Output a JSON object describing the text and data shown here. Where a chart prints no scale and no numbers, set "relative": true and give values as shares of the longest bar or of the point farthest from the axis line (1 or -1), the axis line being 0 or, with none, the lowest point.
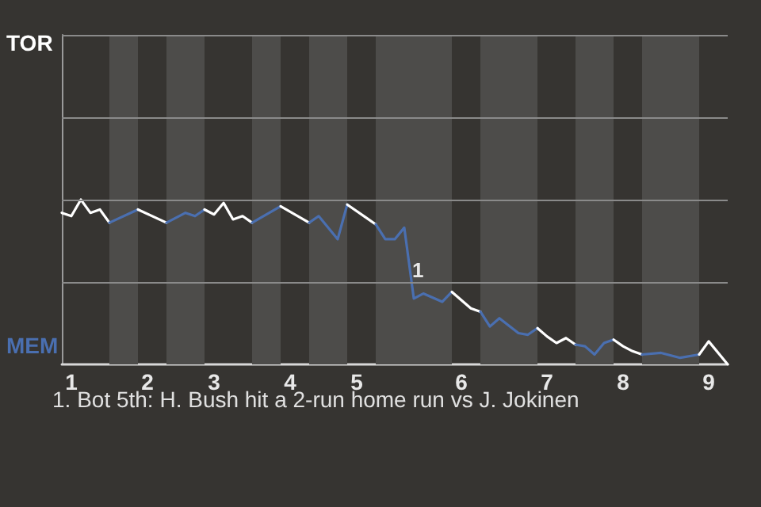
{
  "chart_data": {
    "type": "line",
    "relative": true,
    "categories": [
      null,
      "1",
      null,
      null,
      null,
      null,
      null,
      null,
      null,
      "2",
      null,
      null,
      null,
      null,
      null,
      null,
      "3",
      null,
      null,
      null,
      null,
      null,
      null,
      null,
      "4",
      null,
      null,
      null,
      null,
      null,
      null,
      "5",
      null,
      null,
      null,
      null,
      null,
      null,
      null,
      null,
      null,
      null,
      "6",
      null,
      null,
      null,
      null,
      null,
      null,
      null,
      null,
      "7",
      null,
      null,
      null,
      null,
      null,
      null,
      null,
      "8",
      null,
      null,
      null,
      null,
      null,
      null,
      null,
      null,
      "9",
      null,
      null
    ],
    "ref_lines": [
      {
        "axis": "y",
        "value": 0.5,
        "color": "#8a8a8a",
        "line_style": "solid"
      },
      {
        "axis": "y",
        "value": 1,
        "color": "#8a8a8a",
        "line_style": "solid"
      },
      {
        "axis": "y",
        "value": 1.5,
        "color": "#8a8a8a",
        "line_style": "solid"
      },
      {
        "axis": "y",
        "value": 2,
        "color": "#8a8a8a",
        "line_style": "solid"
      }
    ],
    "marker": "none",
    "line_style": "solid",
    "annotations": [
      "TOR",
      "MEM",
      "1",
      "1. Bot 5th: H. Bush hit a 2-run home run vs J. Jokinen"
    ],
    "series": [
      {
        "color": "#ffffff",
        "values": [
          0.92,
          0.9,
          1,
          0.92,
          0.94,
          0.86,
          null,
          null,
          null,
          null,
          null,
          null,
          null,
          null,
          null,
          null,
          null,
          null,
          null,
          null,
          null,
          null,
          null,
          null,
          null,
          null,
          null,
          null,
          null,
          null,
          null,
          null,
          null,
          null,
          null,
          null,
          null,
          null,
          null,
          null,
          null,
          null,
          null,
          null,
          null,
          null,
          null,
          null,
          null,
          null,
          null,
          null,
          null,
          null,
          null,
          null,
          null,
          null,
          null,
          null,
          null,
          null,
          null,
          null,
          null,
          null,
          null,
          null,
          null,
          null,
          null
        ]
      },
      {
        "color": "#4a6fb0",
        "values": [
          null,
          null,
          null,
          null,
          null,
          0.86,
          null,
          null,
          0.94,
          null,
          null,
          null,
          null,
          null,
          null,
          null,
          null,
          null,
          null,
          null,
          null,
          null,
          null,
          null,
          null,
          null,
          null,
          null,
          null,
          null,
          null,
          null,
          null,
          null,
          null,
          null,
          null,
          null,
          null,
          null,
          null,
          null,
          null,
          null,
          null,
          null,
          null,
          null,
          null,
          null,
          null,
          null,
          null,
          null,
          null,
          null,
          null,
          null,
          null,
          null,
          null,
          null,
          null,
          null,
          null,
          null,
          null,
          null,
          null,
          null,
          null
        ]
      },
      {
        "color": "#ffffff",
        "values": [
          null,
          null,
          null,
          null,
          null,
          null,
          null,
          null,
          0.94,
          null,
          null,
          0.86,
          null,
          null,
          null,
          null,
          null,
          null,
          null,
          null,
          null,
          null,
          null,
          null,
          null,
          null,
          null,
          null,
          null,
          null,
          null,
          null,
          null,
          null,
          null,
          null,
          null,
          null,
          null,
          null,
          null,
          null,
          null,
          null,
          null,
          null,
          null,
          null,
          null,
          null,
          null,
          null,
          null,
          null,
          null,
          null,
          null,
          null,
          null,
          null,
          null,
          null,
          null,
          null,
          null,
          null,
          null,
          null,
          null,
          null,
          null
        ]
      },
      {
        "color": "#4a6fb0",
        "values": [
          null,
          null,
          null,
          null,
          null,
          null,
          null,
          null,
          null,
          null,
          null,
          0.86,
          null,
          0.92,
          0.9,
          0.94,
          null,
          null,
          null,
          null,
          null,
          null,
          null,
          null,
          null,
          null,
          null,
          null,
          null,
          null,
          null,
          null,
          null,
          null,
          null,
          null,
          null,
          null,
          null,
          null,
          null,
          null,
          null,
          null,
          null,
          null,
          null,
          null,
          null,
          null,
          null,
          null,
          null,
          null,
          null,
          null,
          null,
          null,
          null,
          null,
          null,
          null,
          null,
          null,
          null,
          null,
          null,
          null,
          null,
          null,
          null
        ]
      },
      {
        "color": "#ffffff",
        "values": [
          null,
          null,
          null,
          null,
          null,
          null,
          null,
          null,
          null,
          null,
          null,
          null,
          null,
          null,
          null,
          0.94,
          0.91,
          0.98,
          0.88,
          0.9,
          0.86,
          null,
          null,
          null,
          null,
          null,
          null,
          null,
          null,
          null,
          null,
          null,
          null,
          null,
          null,
          null,
          null,
          null,
          null,
          null,
          null,
          null,
          null,
          null,
          null,
          null,
          null,
          null,
          null,
          null,
          null,
          null,
          null,
          null,
          null,
          null,
          null,
          null,
          null,
          null,
          null,
          null,
          null,
          null,
          null,
          null,
          null,
          null,
          null,
          null,
          null
        ]
      },
      {
        "color": "#4a6fb0",
        "values": [
          null,
          null,
          null,
          null,
          null,
          null,
          null,
          null,
          null,
          null,
          null,
          null,
          null,
          null,
          null,
          null,
          null,
          null,
          null,
          null,
          0.86,
          null,
          null,
          0.96,
          null,
          null,
          null,
          null,
          null,
          null,
          null,
          null,
          null,
          null,
          null,
          null,
          null,
          null,
          null,
          null,
          null,
          null,
          null,
          null,
          null,
          null,
          null,
          null,
          null,
          null,
          null,
          null,
          null,
          null,
          null,
          null,
          null,
          null,
          null,
          null,
          null,
          null,
          null,
          null,
          null,
          null,
          null,
          null,
          null,
          null,
          null
        ]
      },
      {
        "color": "#ffffff",
        "values": [
          null,
          null,
          null,
          null,
          null,
          null,
          null,
          null,
          null,
          null,
          null,
          null,
          null,
          null,
          null,
          null,
          null,
          null,
          null,
          null,
          null,
          null,
          null,
          0.96,
          null,
          null,
          0.86,
          null,
          null,
          null,
          null,
          null,
          null,
          null,
          null,
          null,
          null,
          null,
          null,
          null,
          null,
          null,
          null,
          null,
          null,
          null,
          null,
          null,
          null,
          null,
          null,
          null,
          null,
          null,
          null,
          null,
          null,
          null,
          null,
          null,
          null,
          null,
          null,
          null,
          null,
          null,
          null,
          null,
          null,
          null,
          null
        ]
      },
      {
        "color": "#4a6fb0",
        "values": [
          null,
          null,
          null,
          null,
          null,
          null,
          null,
          null,
          null,
          null,
          null,
          null,
          null,
          null,
          null,
          null,
          null,
          null,
          null,
          null,
          null,
          null,
          null,
          null,
          null,
          null,
          0.86,
          0.9,
          null,
          0.76,
          0.97,
          null,
          null,
          null,
          null,
          null,
          null,
          null,
          null,
          null,
          null,
          null,
          null,
          null,
          null,
          null,
          null,
          null,
          null,
          null,
          null,
          null,
          null,
          null,
          null,
          null,
          null,
          null,
          null,
          null,
          null,
          null,
          null,
          null,
          null,
          null,
          null,
          null,
          null,
          null,
          null
        ]
      },
      {
        "color": "#ffffff",
        "values": [
          null,
          null,
          null,
          null,
          null,
          null,
          null,
          null,
          null,
          null,
          null,
          null,
          null,
          null,
          null,
          null,
          null,
          null,
          null,
          null,
          null,
          null,
          null,
          null,
          null,
          null,
          null,
          null,
          null,
          null,
          0.97,
          null,
          0.89,
          0.85,
          null,
          null,
          null,
          null,
          null,
          null,
          null,
          null,
          null,
          null,
          null,
          null,
          null,
          null,
          null,
          null,
          null,
          null,
          null,
          null,
          null,
          null,
          null,
          null,
          null,
          null,
          null,
          null,
          null,
          null,
          null,
          null,
          null,
          null,
          null,
          null,
          null
        ]
      },
      {
        "color": "#4a6fb0",
        "values": [
          null,
          null,
          null,
          null,
          null,
          null,
          null,
          null,
          null,
          null,
          null,
          null,
          null,
          null,
          null,
          null,
          null,
          null,
          null,
          null,
          null,
          null,
          null,
          null,
          null,
          null,
          null,
          null,
          null,
          null,
          null,
          null,
          null,
          0.85,
          0.76,
          0.76,
          0.83,
          0.4,
          0.43,
          null,
          0.38,
          0.44,
          null,
          null,
          null,
          null,
          null,
          null,
          null,
          null,
          null,
          null,
          null,
          null,
          null,
          null,
          null,
          null,
          null,
          null,
          null,
          null,
          null,
          null,
          null,
          null,
          null,
          null,
          null,
          null,
          null
        ]
      },
      {
        "color": "#ffffff",
        "values": [
          null,
          null,
          null,
          null,
          null,
          null,
          null,
          null,
          null,
          null,
          null,
          null,
          null,
          null,
          null,
          null,
          null,
          null,
          null,
          null,
          null,
          null,
          null,
          null,
          null,
          null,
          null,
          null,
          null,
          null,
          null,
          null,
          null,
          null,
          null,
          null,
          null,
          null,
          null,
          null,
          null,
          0.44,
          null,
          0.34,
          0.32,
          null,
          null,
          null,
          null,
          null,
          null,
          null,
          null,
          null,
          null,
          null,
          null,
          null,
          null,
          null,
          null,
          null,
          null,
          null,
          null,
          null,
          null,
          null,
          null,
          null,
          null
        ]
      },
      {
        "color": "#4a6fb0",
        "values": [
          null,
          null,
          null,
          null,
          null,
          null,
          null,
          null,
          null,
          null,
          null,
          null,
          null,
          null,
          null,
          null,
          null,
          null,
          null,
          null,
          null,
          null,
          null,
          null,
          null,
          null,
          null,
          null,
          null,
          null,
          null,
          null,
          null,
          null,
          null,
          null,
          null,
          null,
          null,
          null,
          null,
          null,
          null,
          null,
          0.32,
          0.23,
          0.28,
          null,
          0.19,
          0.18,
          0.22,
          null,
          null,
          null,
          null,
          null,
          null,
          null,
          null,
          null,
          null,
          null,
          null,
          null,
          null,
          null,
          null,
          null,
          null,
          null,
          null
        ]
      },
      {
        "color": "#ffffff",
        "values": [
          null,
          null,
          null,
          null,
          null,
          null,
          null,
          null,
          null,
          null,
          null,
          null,
          null,
          null,
          null,
          null,
          null,
          null,
          null,
          null,
          null,
          null,
          null,
          null,
          null,
          null,
          null,
          null,
          null,
          null,
          null,
          null,
          null,
          null,
          null,
          null,
          null,
          null,
          null,
          null,
          null,
          null,
          null,
          null,
          null,
          null,
          null,
          null,
          null,
          null,
          0.22,
          0.17,
          0.13,
          0.16,
          0.12,
          null,
          null,
          null,
          null,
          null,
          null,
          null,
          null,
          null,
          null,
          null,
          null,
          null,
          null,
          null,
          null
        ]
      },
      {
        "color": "#4a6fb0",
        "values": [
          null,
          null,
          null,
          null,
          null,
          null,
          null,
          null,
          null,
          null,
          null,
          null,
          null,
          null,
          null,
          null,
          null,
          null,
          null,
          null,
          null,
          null,
          null,
          null,
          null,
          null,
          null,
          null,
          null,
          null,
          null,
          null,
          null,
          null,
          null,
          null,
          null,
          null,
          null,
          null,
          null,
          null,
          null,
          null,
          null,
          null,
          null,
          null,
          null,
          null,
          null,
          null,
          null,
          null,
          0.12,
          0.11,
          0.06,
          0.13,
          0.15,
          null,
          null,
          null,
          null,
          null,
          null,
          null,
          null,
          null,
          null,
          null,
          null
        ]
      },
      {
        "color": "#ffffff",
        "values": [
          null,
          null,
          null,
          null,
          null,
          null,
          null,
          null,
          null,
          null,
          null,
          null,
          null,
          null,
          null,
          null,
          null,
          null,
          null,
          null,
          null,
          null,
          null,
          null,
          null,
          null,
          null,
          null,
          null,
          null,
          null,
          null,
          null,
          null,
          null,
          null,
          null,
          null,
          null,
          null,
          null,
          null,
          null,
          null,
          null,
          null,
          null,
          null,
          null,
          null,
          null,
          null,
          null,
          null,
          null,
          null,
          null,
          null,
          0.15,
          0.11,
          0.08,
          0.06,
          null,
          null,
          null,
          null,
          null,
          null,
          null,
          null,
          null
        ]
      },
      {
        "color": "#4a6fb0",
        "values": [
          null,
          null,
          null,
          null,
          null,
          null,
          null,
          null,
          null,
          null,
          null,
          null,
          null,
          null,
          null,
          null,
          null,
          null,
          null,
          null,
          null,
          null,
          null,
          null,
          null,
          null,
          null,
          null,
          null,
          null,
          null,
          null,
          null,
          null,
          null,
          null,
          null,
          null,
          null,
          null,
          null,
          null,
          null,
          null,
          null,
          null,
          null,
          null,
          null,
          null,
          null,
          null,
          null,
          null,
          null,
          null,
          null,
          null,
          null,
          null,
          null,
          0.06,
          null,
          0.07,
          null,
          0.04,
          null,
          0.06,
          null,
          null,
          null
        ]
      },
      {
        "color": "#ffffff",
        "values": [
          null,
          null,
          null,
          null,
          null,
          null,
          null,
          null,
          null,
          null,
          null,
          null,
          null,
          null,
          null,
          null,
          null,
          null,
          null,
          null,
          null,
          null,
          null,
          null,
          null,
          null,
          null,
          null,
          null,
          null,
          null,
          null,
          null,
          null,
          null,
          null,
          null,
          null,
          null,
          null,
          null,
          null,
          null,
          null,
          null,
          null,
          null,
          null,
          null,
          null,
          null,
          null,
          null,
          null,
          null,
          null,
          null,
          null,
          null,
          null,
          null,
          null,
          null,
          null,
          null,
          null,
          null,
          0.06,
          0.14,
          null,
          0
        ]
      }
    ]
  }
}
